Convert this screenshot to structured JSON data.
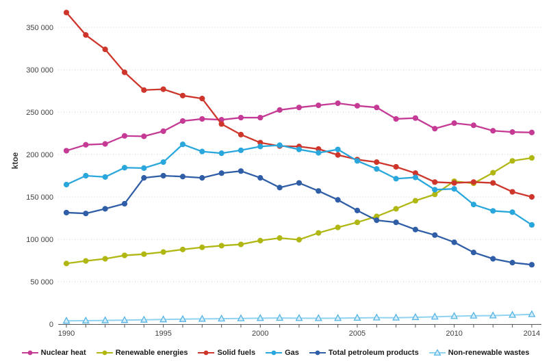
{
  "chart_data": {
    "type": "line",
    "title": "",
    "ylabel": "ktoe",
    "xlabel": "",
    "ylim": [
      0,
      370000
    ],
    "grid": "horizontal-dotted",
    "legend_position": "bottom",
    "yticks": [
      0,
      50000,
      100000,
      150000,
      200000,
      250000,
      300000,
      350000
    ],
    "ytick_labels": [
      "0",
      "50 000",
      "100 000",
      "150 000",
      "200 000",
      "250 000",
      "300 000",
      "350 000"
    ],
    "x": [
      1990,
      1991,
      1992,
      1993,
      1994,
      1995,
      1996,
      1997,
      1998,
      1999,
      2000,
      2001,
      2002,
      2003,
      2004,
      2005,
      2006,
      2007,
      2008,
      2009,
      2010,
      2011,
      2012,
      2013,
      2014
    ],
    "xtick_years": [
      1990,
      1995,
      2000,
      2005,
      2010,
      2014
    ],
    "series": [
      {
        "name": "Nuclear heat",
        "color": "#c53a94",
        "marker": "circle",
        "values": [
          204500,
          211500,
          212500,
          222000,
          221500,
          227500,
          239500,
          242000,
          241000,
          243500,
          243500,
          252500,
          255500,
          258000,
          260500,
          257500,
          255500,
          242000,
          243000,
          230500,
          237000,
          234500,
          228000,
          226500,
          226000
        ]
      },
      {
        "name": "Renewable energies",
        "color": "#b0b712",
        "marker": "circle",
        "values": [
          71500,
          74500,
          77000,
          81000,
          82500,
          85000,
          88000,
          90500,
          92500,
          94000,
          98500,
          101500,
          99500,
          107500,
          114000,
          120000,
          127000,
          136000,
          145500,
          153000,
          168500,
          166000,
          178500,
          192500,
          196000
        ]
      },
      {
        "name": "Solid fuels",
        "color": "#ce352b",
        "marker": "circle",
        "values": [
          367500,
          341000,
          324000,
          297000,
          276000,
          277000,
          269500,
          266000,
          236000,
          223500,
          214000,
          210000,
          209500,
          206500,
          199500,
          194000,
          191000,
          185500,
          178000,
          167500,
          166500,
          167500,
          166500,
          156000,
          150000
        ]
      },
      {
        "name": "Gas",
        "color": "#29a7dc",
        "marker": "circle",
        "values": [
          164500,
          175000,
          173500,
          184500,
          184000,
          191000,
          212000,
          203500,
          201500,
          205000,
          209500,
          211000,
          206000,
          202000,
          206000,
          192500,
          183000,
          171500,
          173000,
          158500,
          159500,
          141000,
          133500,
          132000,
          117000
        ]
      },
      {
        "name": "Total petroleum products",
        "color": "#2f5ea7",
        "marker": "circle",
        "values": [
          131500,
          130500,
          136000,
          142000,
          172500,
          175000,
          174000,
          172500,
          178000,
          180500,
          172500,
          161000,
          166500,
          157000,
          146500,
          134000,
          122500,
          120000,
          111500,
          105000,
          96500,
          84500,
          77000,
          72500,
          70000
        ]
      },
      {
        "name": "Non-renewable wastes",
        "color": "#90d3f1",
        "marker": "triangle",
        "marker_stroke": "#54b4e4",
        "marker_fill": "#d6eefa",
        "values": [
          3800,
          4000,
          4300,
          4600,
          5000,
          5400,
          5800,
          6100,
          6400,
          6700,
          7000,
          7200,
          7000,
          6900,
          7000,
          7300,
          7600,
          7500,
          8000,
          8600,
          9300,
          9800,
          10000,
          10700,
          11500
        ]
      }
    ]
  }
}
